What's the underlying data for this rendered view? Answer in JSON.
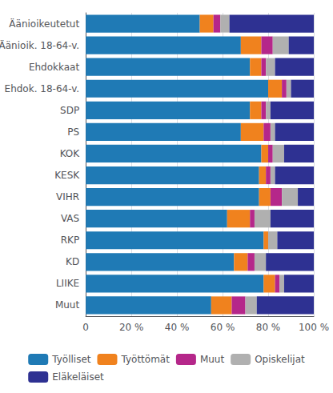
{
  "chart_data": {
    "type": "bar",
    "orientation": "horizontal",
    "stacked": true,
    "categories": [
      "Äänioikeutetut",
      "Äänioik. 18-64-v.",
      "Ehdokkaat",
      "Ehdok. 18-64-v.",
      "SDP",
      "PS",
      "KOK",
      "KESK",
      "VIHR",
      "VAS",
      "RKP",
      "KD",
      "LIIKE",
      "Muut"
    ],
    "series": [
      {
        "name": "Työlliset",
        "color": "#1f7ab5",
        "values": [
          50,
          68,
          72,
          80,
          72,
          68,
          77,
          76,
          76,
          62,
          78,
          65,
          78,
          55
        ]
      },
      {
        "name": "Työttömät",
        "color": "#f0821e",
        "values": [
          6,
          9,
          5,
          6,
          5,
          10,
          3,
          3,
          5,
          10,
          2,
          6,
          5,
          9
        ]
      },
      {
        "name": "Muut",
        "color": "#b5278a",
        "values": [
          3,
          5,
          2,
          2,
          2,
          3,
          2,
          2,
          5,
          2,
          0,
          3,
          2,
          6
        ]
      },
      {
        "name": "Opiskelijat",
        "color": "#b0b0b0",
        "values": [
          4,
          7,
          4,
          2,
          2,
          2,
          5,
          2,
          7,
          7,
          4,
          5,
          2,
          5
        ]
      },
      {
        "name": "Eläkeläiset",
        "color": "#2e3192",
        "values": [
          37,
          11,
          17,
          10,
          19,
          17,
          13,
          17,
          7,
          19,
          16,
          21,
          13,
          25
        ]
      }
    ],
    "xlim": [
      0,
      100
    ],
    "xticks": [
      0,
      {
        "value": 20,
        "label": "20 %"
      },
      {
        "value": 40,
        "label": "40 %"
      },
      {
        "value": 60,
        "label": "60 %"
      },
      {
        "value": 80,
        "label": "80 %"
      },
      {
        "value": 100,
        "label": "100 %"
      }
    ],
    "grid": true,
    "legend": "bottom"
  }
}
